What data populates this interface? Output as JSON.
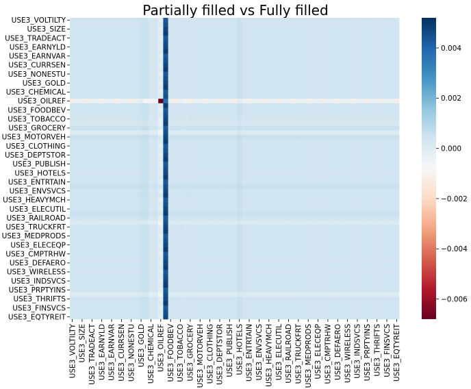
{
  "chart_data": {
    "type": "heatmap",
    "title": "Partially filled vs Fully filled",
    "xlabel": "",
    "ylabel": "",
    "colormap": "RdBu",
    "vmin": -0.0068,
    "vmax": 0.0052,
    "ylabels_shown": [
      "USE3_VOLTILTY",
      "USE3_SIZE",
      "USE3_TRADEACT",
      "USE3_EARNYLD",
      "USE3_EARNVAR",
      "USE3_CURRSEN",
      "USE3_NONESTU",
      "USE3_GOLD",
      "USE3_CHEMICAL",
      "USE3_OILREF",
      "USE3_FOODBEV",
      "USE3_TOBACCO",
      "USE3_GROCERY",
      "USE3_MOTORVEH",
      "USE3_CLOTHING",
      "USE3_DEPTSTOR",
      "USE3_PUBLISH",
      "USE3_HOTELS",
      "USE3_ENTRTAIN",
      "USE3_ENVSVCS",
      "USE3_HEAVYMCH",
      "USE3_ELECUTIL",
      "USE3_RAILROAD",
      "USE3_TRUCKFRT",
      "USE3_MEDPRODS",
      "USE3_ELECEQP",
      "USE3_CMPTRHW",
      "USE3_DEFAERO",
      "USE3_WIRELESS",
      "USE3_INDSVCS",
      "USE3_PRPTYINS",
      "USE3_THRIFTS",
      "USE3_FINSVCS",
      "USE3_EQTYREIT"
    ],
    "xlabels_shown": [
      "USE3_VOLTILTY",
      "USE3_SIZE",
      "USE3_TRADEACT",
      "USE3_EARNYLD",
      "USE3_EARNVAR",
      "USE3_CURRSEN",
      "USE3_NONESTU",
      "USE3_GOLD",
      "USE3_CHEMICAL",
      "USE3_OILREF",
      "USE3_FOODBEV",
      "USE3_TOBACCO",
      "USE3_GROCERY",
      "USE3_MOTORVEH",
      "USE3_CLOTHING",
      "USE3_DEPTSTOR",
      "USE3_PUBLISH",
      "USE3_HOTELS",
      "USE3_ENTRTAIN",
      "USE3_ENVSVCS",
      "USE3_HEAVYMCH",
      "USE3_ELECUTIL",
      "USE3_RAILROAD",
      "USE3_TRUCKFRT",
      "USE3_MEDPRODS",
      "USE3_ELECEQP",
      "USE3_CMPTRHW",
      "USE3_DEFAERO",
      "USE3_WIRELESS",
      "USE3_INDSVCS",
      "USE3_PRPTYINS",
      "USE3_THRIFTS",
      "USE3_FINSVCS",
      "USE3_EQTYREIT"
    ],
    "n_rows": 67,
    "n_cols": 67,
    "special_index": 18,
    "special_value": -0.0068,
    "row_effects": [
      0.0004,
      0.0004,
      0.0004,
      0.0004,
      0.0004,
      0.0004,
      0.0004,
      0.0004,
      0.0004,
      0.0004,
      0.0004,
      0.0004,
      0.0004,
      0.0004,
      0.0004,
      0.0004,
      0.0004,
      0.0004,
      0.0004,
      0.0004,
      0.0004,
      0.0004,
      0.0003,
      0.0001,
      0.0006,
      -0.0003,
      0.0007,
      0.0004,
      0.0004,
      0.0004,
      0.0004,
      0.0004,
      0.0004,
      0.0004,
      0.0004,
      0.0004,
      0.0004,
      0.0007,
      0.0004,
      0.0005,
      0.0004,
      0.0004,
      0.0004,
      0.0006,
      0.0004,
      -0.0002,
      0.0004,
      0.0004,
      0.0004,
      0.0004,
      0.0004,
      0.0004,
      0.0004,
      0.0004,
      0.0004,
      0.0004,
      0.0004,
      0.0004,
      0.0004,
      0.0004,
      0.0004,
      -0.0003,
      0.0004,
      0.0004,
      0.0004,
      0.0004,
      0.0004
    ],
    "col_effects": [
      0.0004,
      0.0004,
      0.0004,
      0.0004,
      0.0004,
      0.0004,
      0.0004,
      0.0004,
      0.0004,
      0.0004,
      0.0004,
      0.0004,
      0.0004,
      0.0004,
      0.0006,
      0.0007,
      0.0002,
      0.0003,
      0.0,
      0.0046,
      0.0004,
      0.0004,
      0.0004,
      0.0003,
      0.0004,
      0.0004,
      0.0004,
      0.0004,
      0.0004,
      0.0004,
      0.0004,
      0.0004,
      0.0004,
      0.0004,
      0.0007,
      0.0004,
      0.0004,
      0.0004,
      0.0004,
      0.0004,
      0.0004,
      0.0004,
      0.0004,
      0.0004,
      0.0004,
      0.0004,
      0.0004,
      0.0004,
      0.0004,
      0.0004,
      0.0004,
      0.0004,
      0.0004,
      0.0004,
      0.0004,
      0.0004,
      0.0004,
      0.0004,
      0.0004,
      0.0004,
      0.0004,
      0.0004,
      0.0004,
      0.0004,
      0.0004,
      0.0004,
      0.0004
    ],
    "colorbar_ticks": [
      {
        "value": 0.004,
        "label": "0.004"
      },
      {
        "value": 0.002,
        "label": "0.002"
      },
      {
        "value": 0.0,
        "label": "0.000"
      },
      {
        "value": -0.002,
        "label": "−0.002"
      },
      {
        "value": -0.004,
        "label": "−0.004"
      },
      {
        "value": -0.006,
        "label": "−0.006"
      }
    ],
    "grid": false,
    "legend": "colorbar-right"
  }
}
